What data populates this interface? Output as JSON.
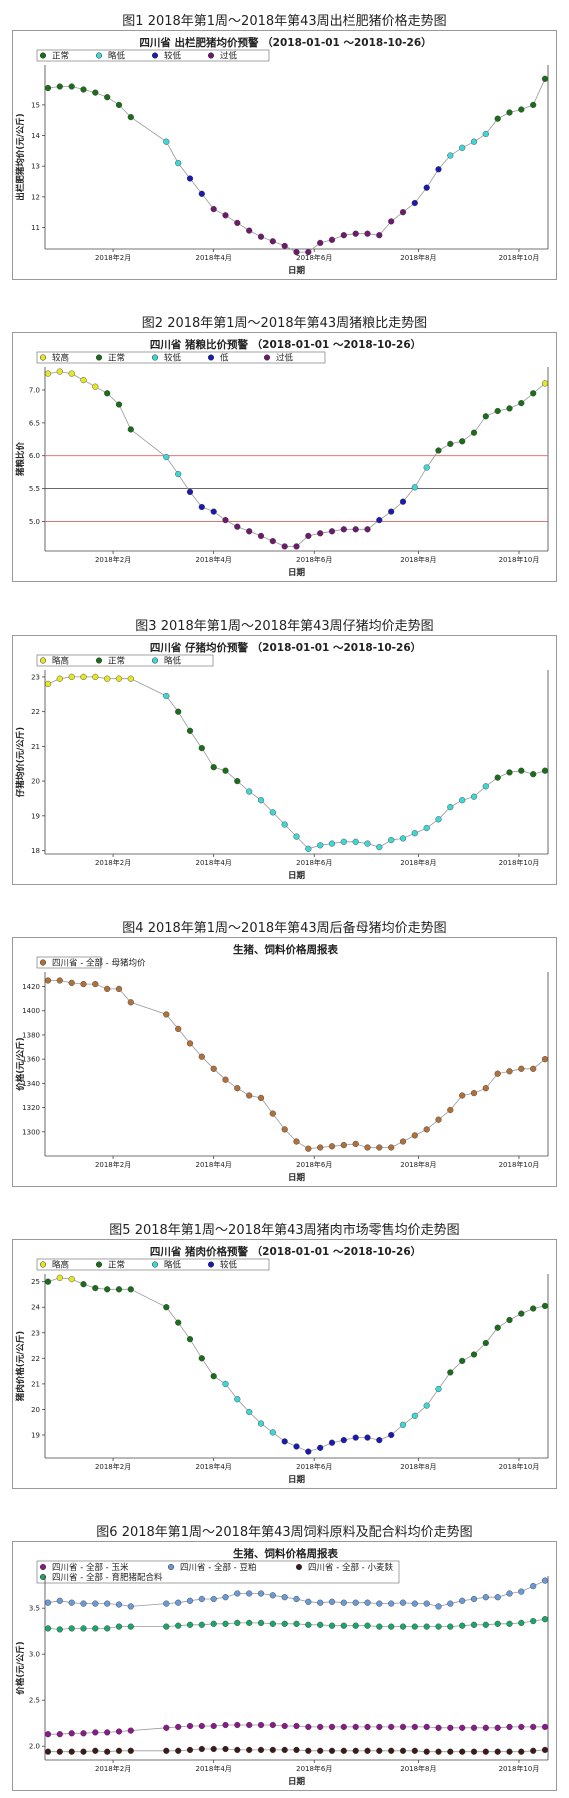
{
  "sections": [
    {
      "caption": "图1 2018年第1周～2018年第43周出栏肥猪价格走势图"
    },
    {
      "caption": "图2 2018年第1周～2018年第43周猪粮比走势图"
    },
    {
      "caption": "图3 2018年第1周～2018年第43周仔猪均价走势图"
    },
    {
      "caption": "图4 2018年第1周～2018年第43周后备母猪均价走势图"
    },
    {
      "caption": "图5 2018年第1周～2018年第43周猪肉市场零售均价走势图"
    },
    {
      "caption": "图6 2018年第1周～2018年第43周饲料原料及配合料均价走势图"
    }
  ],
  "chart_data": [
    {
      "type": "scatter",
      "title": "四川省 出栏肥猪均价预警 （2018-01-01 ～2018-10-26）",
      "xlabel": "日期",
      "ylabel": "出栏肥猪均价(元/公斤)",
      "x_ticks": [
        "2018年2月",
        "2018年4月",
        "2018年6月",
        "2018年8月",
        "2018年10月"
      ],
      "ylim": [
        10.3,
        16.3
      ],
      "y_ticks": [
        11,
        12,
        13,
        14,
        15
      ],
      "legend": [
        {
          "label": "正常",
          "color": "#1a6e1a"
        },
        {
          "label": "略低",
          "color": "#3fd6d6"
        },
        {
          "label": "较低",
          "color": "#1a1ab0"
        },
        {
          "label": "过低",
          "color": "#6e1a6e"
        }
      ],
      "legend_position": "top-left",
      "grid": false,
      "x": [
        1,
        2,
        3,
        4,
        5,
        6,
        7,
        8,
        11,
        12,
        13,
        14,
        15,
        16,
        17,
        18,
        19,
        20,
        21,
        22,
        23,
        24,
        25,
        26,
        27,
        28,
        29,
        30,
        31,
        32,
        33,
        34,
        35,
        36,
        37,
        38,
        39,
        40,
        41,
        42,
        43
      ],
      "values": [
        15.55,
        15.6,
        15.6,
        15.5,
        15.4,
        15.25,
        15.0,
        14.6,
        13.8,
        13.1,
        12.6,
        12.1,
        11.6,
        11.4,
        11.15,
        10.9,
        10.7,
        10.55,
        10.4,
        10.2,
        10.2,
        10.5,
        10.6,
        10.75,
        10.8,
        10.8,
        10.75,
        11.2,
        11.5,
        11.8,
        12.3,
        12.9,
        13.35,
        13.6,
        13.8,
        14.05,
        14.55,
        14.75,
        14.85,
        15.0,
        15.85
      ],
      "levels": [
        0,
        0,
        0,
        0,
        0,
        0,
        0,
        0,
        1,
        1,
        2,
        2,
        3,
        3,
        3,
        3,
        3,
        3,
        3,
        3,
        3,
        3,
        3,
        3,
        3,
        3,
        3,
        3,
        3,
        2,
        2,
        2,
        1,
        1,
        1,
        1,
        0,
        0,
        0,
        0,
        0
      ]
    },
    {
      "type": "scatter",
      "title": "四川省 猪粮比价预警 （2018-01-01 ～2018-10-26）",
      "xlabel": "日期",
      "ylabel": "猪粮比价",
      "x_ticks": [
        "2018年2月",
        "2018年4月",
        "2018年6月",
        "2018年8月",
        "2018年10月"
      ],
      "ylim": [
        4.55,
        7.35
      ],
      "y_ticks": [
        5.0,
        5.5,
        6.0,
        6.5,
        7.0
      ],
      "ref_lines": [
        {
          "y": 6.0,
          "color": "#e06060"
        },
        {
          "y": 5.5,
          "color": "#555555"
        },
        {
          "y": 5.0,
          "color": "#e06060"
        }
      ],
      "legend": [
        {
          "label": "较高",
          "color": "#e6e626"
        },
        {
          "label": "正常",
          "color": "#1a6e1a"
        },
        {
          "label": "较低",
          "color": "#3fd6d6"
        },
        {
          "label": "低",
          "color": "#1a1ab0"
        },
        {
          "label": "过低",
          "color": "#6e1a6e"
        }
      ],
      "legend_position": "top-left",
      "grid": false,
      "x": [
        1,
        2,
        3,
        4,
        5,
        6,
        7,
        8,
        11,
        12,
        13,
        14,
        15,
        16,
        17,
        18,
        19,
        20,
        21,
        22,
        23,
        24,
        25,
        26,
        27,
        28,
        29,
        30,
        31,
        32,
        33,
        34,
        35,
        36,
        37,
        38,
        39,
        40,
        41,
        42,
        43
      ],
      "values": [
        7.25,
        7.28,
        7.25,
        7.15,
        7.05,
        6.95,
        6.78,
        6.4,
        5.98,
        5.72,
        5.45,
        5.22,
        5.15,
        5.02,
        4.92,
        4.85,
        4.78,
        4.7,
        4.62,
        4.62,
        4.78,
        4.82,
        4.85,
        4.88,
        4.88,
        4.88,
        5.02,
        5.15,
        5.3,
        5.52,
        5.82,
        6.08,
        6.18,
        6.22,
        6.35,
        6.6,
        6.68,
        6.72,
        6.8,
        6.95,
        7.1
      ],
      "levels": [
        0,
        0,
        0,
        0,
        0,
        1,
        1,
        1,
        2,
        2,
        3,
        3,
        3,
        4,
        4,
        4,
        4,
        4,
        4,
        4,
        4,
        4,
        4,
        4,
        4,
        4,
        3,
        3,
        3,
        2,
        2,
        1,
        1,
        1,
        1,
        1,
        1,
        1,
        1,
        1,
        0
      ]
    },
    {
      "type": "scatter",
      "title": "四川省 仔猪均价预警 （2018-01-01 ～2018-10-26）",
      "xlabel": "日期",
      "ylabel": "仔猪均价(元/公斤)",
      "x_ticks": [
        "2018年2月",
        "2018年4月",
        "2018年6月",
        "2018年8月",
        "2018年10月"
      ],
      "ylim": [
        17.9,
        23.2
      ],
      "y_ticks": [
        18,
        19,
        20,
        21,
        22,
        23
      ],
      "legend": [
        {
          "label": "略高",
          "color": "#e6e626"
        },
        {
          "label": "正常",
          "color": "#1a6e1a"
        },
        {
          "label": "略低",
          "color": "#3fd6d6"
        }
      ],
      "legend_position": "top-left",
      "grid": false,
      "x": [
        1,
        2,
        3,
        4,
        5,
        6,
        7,
        8,
        11,
        12,
        13,
        14,
        15,
        16,
        17,
        18,
        19,
        20,
        21,
        22,
        23,
        24,
        25,
        26,
        27,
        28,
        29,
        30,
        31,
        32,
        33,
        34,
        35,
        36,
        37,
        38,
        39,
        40,
        41,
        42,
        43
      ],
      "values": [
        22.8,
        22.95,
        23.0,
        23.0,
        23.0,
        22.95,
        22.95,
        22.95,
        22.45,
        22.0,
        21.45,
        20.95,
        20.4,
        20.3,
        20.0,
        19.7,
        19.45,
        19.1,
        18.75,
        18.4,
        18.05,
        18.15,
        18.2,
        18.25,
        18.25,
        18.2,
        18.1,
        18.3,
        18.35,
        18.5,
        18.65,
        18.9,
        19.25,
        19.45,
        19.55,
        19.85,
        20.1,
        20.25,
        20.3,
        20.2,
        20.3
      ],
      "levels": [
        0,
        0,
        0,
        0,
        0,
        0,
        0,
        0,
        2,
        1,
        1,
        1,
        1,
        1,
        1,
        2,
        2,
        2,
        2,
        2,
        2,
        2,
        2,
        2,
        2,
        2,
        2,
        2,
        2,
        2,
        2,
        2,
        2,
        2,
        2,
        2,
        1,
        1,
        1,
        1,
        1
      ]
    },
    {
      "type": "scatter",
      "title": "生猪、饲料价格周报表",
      "xlabel": "日期",
      "ylabel": "价格(元/公斤)",
      "x_ticks": [
        "2018年2月",
        "2018年4月",
        "2018年6月",
        "2018年8月",
        "2018年10月"
      ],
      "ylim": [
        1280,
        1432
      ],
      "y_ticks": [
        1300,
        1320,
        1340,
        1360,
        1380,
        1400,
        1420
      ],
      "legend": [
        {
          "label": "四川省 - 全部 - 母猪均价",
          "color": "#b0703a"
        }
      ],
      "legend_position": "top-left",
      "grid": false,
      "series": [
        {
          "name": "四川省 - 全部 - 母猪均价",
          "color": "#b0703a",
          "x": [
            1,
            2,
            3,
            4,
            5,
            6,
            7,
            8,
            11,
            12,
            13,
            14,
            15,
            16,
            17,
            18,
            19,
            20,
            21,
            22,
            23,
            24,
            25,
            26,
            27,
            28,
            29,
            30,
            31,
            32,
            33,
            34,
            35,
            36,
            37,
            38,
            39,
            40,
            41,
            42,
            43
          ],
          "values": [
            1425,
            1425,
            1423,
            1422,
            1422,
            1418,
            1418,
            1407,
            1397,
            1385,
            1373,
            1362,
            1352,
            1343,
            1336,
            1330,
            1328,
            1315,
            1302,
            1292,
            1286,
            1287,
            1288,
            1289,
            1290,
            1287,
            1287,
            1287,
            1292,
            1297,
            1302,
            1310,
            1318,
            1330,
            1332,
            1336,
            1348,
            1350,
            1352,
            1352,
            1360
          ]
        }
      ]
    },
    {
      "type": "scatter",
      "title": "四川省 猪肉价格预警 （2018-01-01 ～2018-10-26）",
      "xlabel": "日期",
      "ylabel": "猪肉价格(元/公斤)",
      "x_ticks": [
        "2018年2月",
        "2018年4月",
        "2018年6月",
        "2018年8月",
        "2018年10月"
      ],
      "ylim": [
        18.1,
        25.3
      ],
      "y_ticks": [
        19,
        20,
        21,
        22,
        23,
        24,
        25
      ],
      "legend": [
        {
          "label": "略高",
          "color": "#e6e626"
        },
        {
          "label": "正常",
          "color": "#1a6e1a"
        },
        {
          "label": "略低",
          "color": "#3fd6d6"
        },
        {
          "label": "较低",
          "color": "#1a1ab0"
        }
      ],
      "legend_position": "top-left",
      "grid": false,
      "x": [
        1,
        2,
        3,
        4,
        5,
        6,
        7,
        8,
        11,
        12,
        13,
        14,
        15,
        16,
        17,
        18,
        19,
        20,
        21,
        22,
        23,
        24,
        25,
        26,
        27,
        28,
        29,
        30,
        31,
        32,
        33,
        34,
        35,
        36,
        37,
        38,
        39,
        40,
        41,
        42,
        43
      ],
      "values": [
        25.0,
        25.15,
        25.1,
        24.9,
        24.75,
        24.7,
        24.7,
        24.7,
        24.0,
        23.4,
        22.75,
        22.0,
        21.3,
        21.0,
        20.4,
        19.9,
        19.45,
        19.1,
        18.75,
        18.55,
        18.35,
        18.5,
        18.7,
        18.8,
        18.9,
        18.9,
        18.8,
        19.0,
        19.4,
        19.75,
        20.15,
        20.8,
        21.45,
        21.9,
        22.15,
        22.6,
        23.2,
        23.5,
        23.75,
        23.95,
        24.05
      ],
      "levels": [
        1,
        0,
        0,
        1,
        1,
        1,
        1,
        1,
        1,
        1,
        1,
        1,
        1,
        2,
        2,
        2,
        2,
        2,
        3,
        3,
        3,
        3,
        3,
        3,
        3,
        3,
        3,
        3,
        2,
        2,
        2,
        2,
        1,
        1,
        1,
        1,
        1,
        1,
        1,
        1,
        1
      ]
    },
    {
      "type": "scatter",
      "title": "生猪、饲料价格周报表",
      "xlabel": "日期",
      "ylabel": "价格(元/公斤)",
      "x_ticks": [
        "2018年2月",
        "2018年4月",
        "2018年6月",
        "2018年8月",
        "2018年10月"
      ],
      "ylim": [
        1.85,
        3.85
      ],
      "y_ticks": [
        2.0,
        2.5,
        3.0,
        3.5
      ],
      "legend": [
        {
          "label": "四川省 - 全部 - 玉米",
          "color": "#8a1a8a"
        },
        {
          "label": "四川省 - 全部 - 豆粕",
          "color": "#6a9ad6"
        },
        {
          "label": "四川省 - 全部 - 小麦麸",
          "color": "#3a1a1a"
        },
        {
          "label": "四川省 - 全部 - 育肥猪配合料",
          "color": "#1aa66a"
        }
      ],
      "legend_position": "top-left",
      "grid": false,
      "series": [
        {
          "name": "四川省 - 全部 - 豆粕",
          "color": "#6a9ad6",
          "x": [
            1,
            2,
            3,
            4,
            5,
            6,
            7,
            8,
            11,
            12,
            13,
            14,
            15,
            16,
            17,
            18,
            19,
            20,
            21,
            22,
            23,
            24,
            25,
            26,
            27,
            28,
            29,
            30,
            31,
            32,
            33,
            34,
            35,
            36,
            37,
            38,
            39,
            40,
            41,
            42,
            43
          ],
          "values": [
            3.56,
            3.58,
            3.56,
            3.55,
            3.55,
            3.55,
            3.54,
            3.52,
            3.55,
            3.56,
            3.58,
            3.6,
            3.6,
            3.62,
            3.66,
            3.66,
            3.66,
            3.64,
            3.62,
            3.6,
            3.57,
            3.56,
            3.57,
            3.56,
            3.56,
            3.56,
            3.55,
            3.55,
            3.56,
            3.55,
            3.55,
            3.52,
            3.55,
            3.58,
            3.6,
            3.62,
            3.62,
            3.66,
            3.68,
            3.74,
            3.8
          ]
        },
        {
          "name": "四川省 - 全部 - 育肥猪配合料",
          "color": "#1aa66a",
          "x": [
            1,
            2,
            3,
            4,
            5,
            6,
            7,
            8,
            11,
            12,
            13,
            14,
            15,
            16,
            17,
            18,
            19,
            20,
            21,
            22,
            23,
            24,
            25,
            26,
            27,
            28,
            29,
            30,
            31,
            32,
            33,
            34,
            35,
            36,
            37,
            38,
            39,
            40,
            41,
            42,
            43
          ],
          "values": [
            3.28,
            3.27,
            3.28,
            3.28,
            3.28,
            3.28,
            3.3,
            3.3,
            3.3,
            3.31,
            3.32,
            3.32,
            3.33,
            3.33,
            3.34,
            3.34,
            3.34,
            3.33,
            3.33,
            3.33,
            3.32,
            3.32,
            3.31,
            3.31,
            3.31,
            3.31,
            3.3,
            3.3,
            3.3,
            3.3,
            3.3,
            3.3,
            3.3,
            3.31,
            3.32,
            3.32,
            3.33,
            3.33,
            3.34,
            3.36,
            3.38
          ]
        },
        {
          "name": "四川省 - 全部 - 玉米",
          "color": "#8a1a8a",
          "x": [
            1,
            2,
            3,
            4,
            5,
            6,
            7,
            8,
            11,
            12,
            13,
            14,
            15,
            16,
            17,
            18,
            19,
            20,
            21,
            22,
            23,
            24,
            25,
            26,
            27,
            28,
            29,
            30,
            31,
            32,
            33,
            34,
            35,
            36,
            37,
            38,
            39,
            40,
            41,
            42,
            43
          ],
          "values": [
            2.13,
            2.13,
            2.14,
            2.14,
            2.15,
            2.15,
            2.16,
            2.17,
            2.2,
            2.21,
            2.22,
            2.22,
            2.22,
            2.23,
            2.23,
            2.23,
            2.23,
            2.23,
            2.22,
            2.22,
            2.21,
            2.21,
            2.21,
            2.21,
            2.21,
            2.21,
            2.21,
            2.21,
            2.21,
            2.21,
            2.21,
            2.2,
            2.2,
            2.2,
            2.2,
            2.2,
            2.2,
            2.21,
            2.21,
            2.21,
            2.21
          ]
        },
        {
          "name": "四川省 - 全部 - 小麦麸",
          "color": "#3a1a1a",
          "x": [
            1,
            2,
            3,
            4,
            5,
            6,
            7,
            8,
            11,
            12,
            13,
            14,
            15,
            16,
            17,
            18,
            19,
            20,
            21,
            22,
            23,
            24,
            25,
            26,
            27,
            28,
            29,
            30,
            31,
            32,
            33,
            34,
            35,
            36,
            37,
            38,
            39,
            40,
            41,
            42,
            43
          ],
          "values": [
            1.94,
            1.94,
            1.94,
            1.94,
            1.95,
            1.94,
            1.95,
            1.95,
            1.95,
            1.95,
            1.96,
            1.97,
            1.97,
            1.97,
            1.96,
            1.96,
            1.96,
            1.96,
            1.96,
            1.96,
            1.95,
            1.95,
            1.95,
            1.95,
            1.95,
            1.95,
            1.95,
            1.95,
            1.95,
            1.95,
            1.94,
            1.94,
            1.94,
            1.94,
            1.94,
            1.94,
            1.94,
            1.94,
            1.94,
            1.95,
            1.96
          ]
        }
      ]
    }
  ]
}
